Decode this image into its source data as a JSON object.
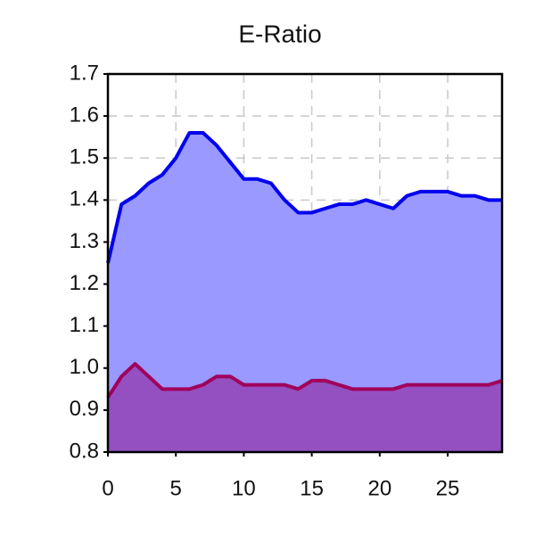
{
  "chart_data": {
    "type": "area",
    "title": "E-Ratio",
    "x": [
      0,
      1,
      2,
      3,
      4,
      5,
      6,
      7,
      8,
      9,
      10,
      11,
      12,
      13,
      14,
      15,
      16,
      17,
      18,
      19,
      20,
      21,
      22,
      23,
      24,
      25,
      26,
      27,
      28,
      29
    ],
    "series": [
      {
        "color": "#0000ee",
        "fill": "#9999ff",
        "values": [
          1.25,
          1.39,
          1.41,
          1.44,
          1.46,
          1.5,
          1.56,
          1.56,
          1.53,
          1.49,
          1.45,
          1.45,
          1.44,
          1.4,
          1.37,
          1.37,
          1.38,
          1.39,
          1.39,
          1.4,
          1.39,
          1.38,
          1.41,
          1.42,
          1.42,
          1.42,
          1.41,
          1.41,
          1.4,
          1.4
        ]
      },
      {
        "color": "#a0005a",
        "fill": "#9450c0",
        "values": [
          0.93,
          0.98,
          1.01,
          0.98,
          0.95,
          0.95,
          0.95,
          0.96,
          0.98,
          0.98,
          0.96,
          0.96,
          0.96,
          0.96,
          0.95,
          0.97,
          0.97,
          0.96,
          0.95,
          0.95,
          0.95,
          0.95,
          0.96,
          0.96,
          0.96,
          0.96,
          0.96,
          0.96,
          0.96,
          0.97
        ]
      }
    ],
    "xlim": [
      0,
      29
    ],
    "xticks": [
      0,
      5,
      10,
      15,
      20,
      25
    ],
    "ylim": [
      0.8,
      1.7
    ],
    "yticks": [
      0.8,
      0.9,
      {
        "value": 1,
        "label": "1.0"
      },
      1.1,
      1.2,
      1.3,
      1.4,
      1.5,
      1.6,
      1.7
    ],
    "grid": true
  }
}
